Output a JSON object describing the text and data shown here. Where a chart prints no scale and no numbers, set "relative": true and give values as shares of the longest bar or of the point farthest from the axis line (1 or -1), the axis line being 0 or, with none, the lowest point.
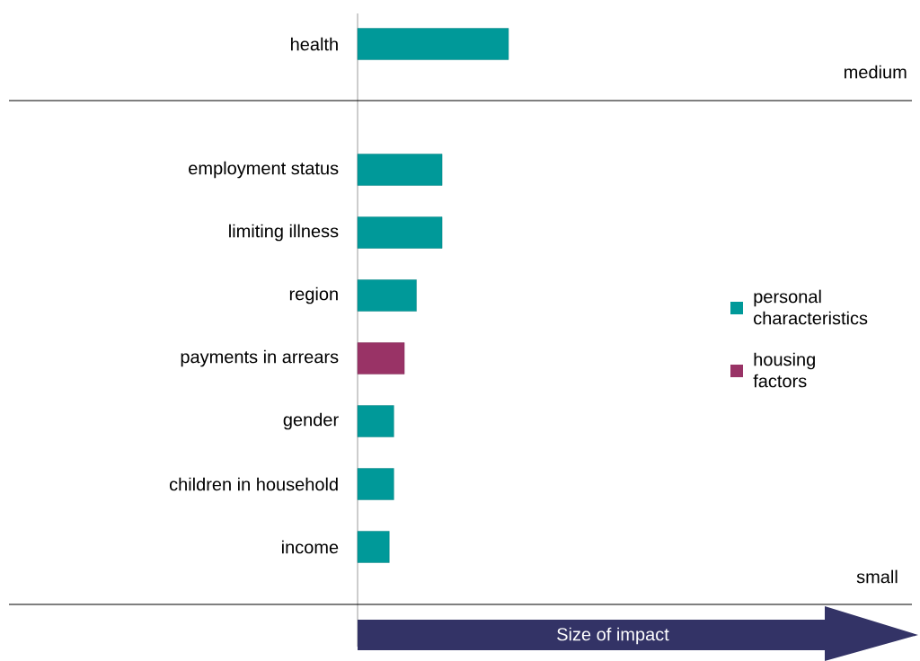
{
  "chart_data": {
    "type": "bar",
    "orientation": "horizontal",
    "relative": true,
    "categories": [
      "health",
      null,
      "employment status",
      "limiting illness",
      "region",
      "payments in arrears",
      "gender",
      "children in household",
      "income"
    ],
    "series": [
      {
        "name": "personal characteristics",
        "color": "#009999",
        "values": [
          1,
          null,
          0.56,
          0.56,
          0.39,
          null,
          0.24,
          0.24,
          0.21
        ]
      },
      {
        "name": "housing factors",
        "color": "#993366",
        "values": [
          null,
          null,
          null,
          null,
          null,
          0.31,
          null,
          null,
          null
        ]
      }
    ],
    "legend": "right",
    "annotations": [
      "medium",
      "small",
      "Size of impact"
    ]
  }
}
